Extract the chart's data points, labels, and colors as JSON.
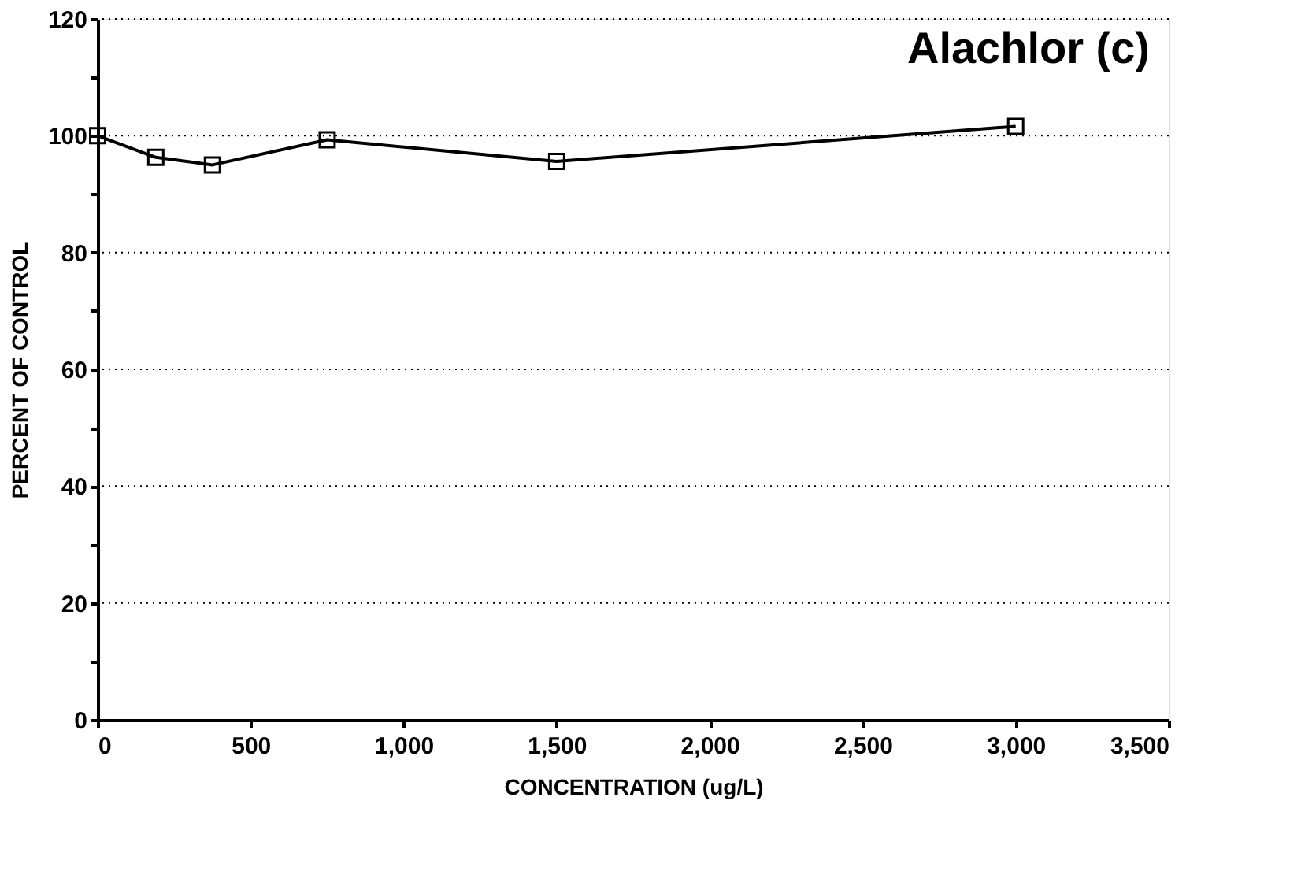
{
  "chart_data": {
    "type": "line",
    "title": "Alachlor (c)",
    "xlabel": "CONCENTRATION (ug/L)",
    "ylabel": "PERCENT OF CONTROL",
    "x": [
      0,
      190,
      375,
      750,
      1500,
      3000
    ],
    "series": [
      {
        "color": "#000000",
        "values": [
          100,
          96.3,
          95,
          99.3,
          95.6,
          101.6
        ]
      }
    ],
    "xlim": [
      0,
      3500
    ],
    "ylim": [
      0,
      120
    ],
    "xticks": [
      0,
      {
        "value": 500,
        "label": "500"
      },
      {
        "value": 1000,
        "label": "1,000"
      },
      {
        "value": 1500,
        "label": "1,500"
      },
      {
        "value": 2000,
        "label": "2,000"
      },
      {
        "value": 2500,
        "label": "2,500"
      },
      {
        "value": 3000,
        "label": "3,000"
      },
      {
        "value": 3500,
        "label": "3,500"
      }
    ],
    "yticks": [
      0,
      {
        "value": 10,
        "label": null
      },
      20,
      {
        "value": 30,
        "label": null
      },
      40,
      {
        "value": 50,
        "label": null
      },
      60,
      {
        "value": 70,
        "label": null
      },
      80,
      {
        "value": 90,
        "label": null
      },
      100,
      {
        "value": 110,
        "label": null
      },
      120
    ],
    "grid": "y",
    "marker": "square",
    "line_style": "solid"
  }
}
